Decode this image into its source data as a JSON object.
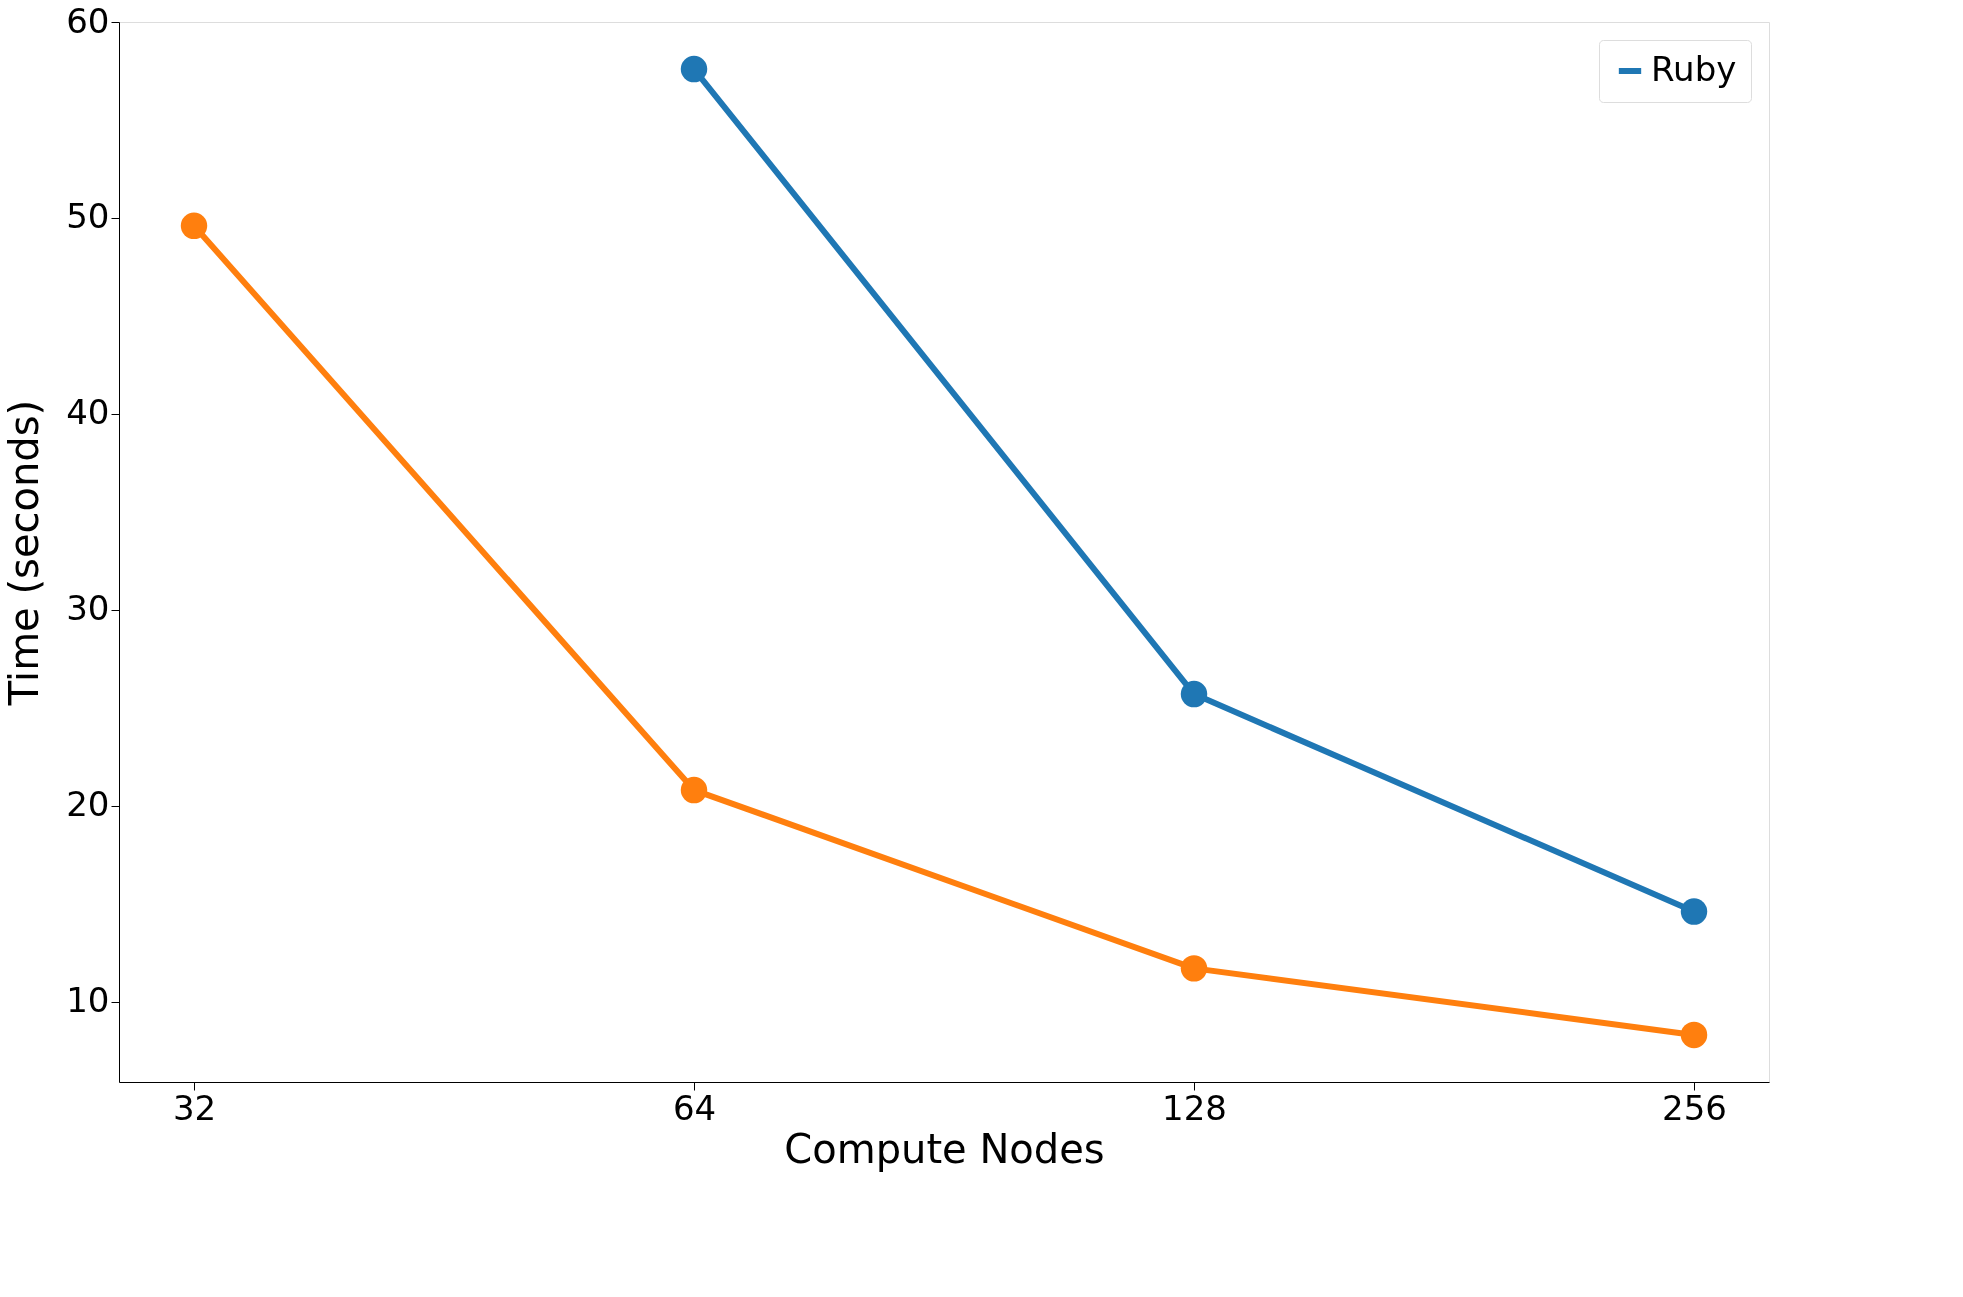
{
  "chart_data": {
    "type": "line",
    "xlabel": "Compute Nodes",
    "ylabel": "Time (seconds)",
    "categories": [
      "32",
      "64",
      "128",
      "256"
    ],
    "series": [
      {
        "name": "Ruby",
        "color": "#1f77b4",
        "values": [
          null,
          57.6,
          25.7,
          14.6
        ]
      },
      {
        "color": "#ff7f0e",
        "values": [
          49.6,
          20.8,
          11.7,
          8.3
        ]
      }
    ],
    "ylim": [
      5.9,
      60
    ],
    "yticks": [
      10,
      20,
      30,
      40,
      50,
      60
    ],
    "grid": false,
    "legend": "top right",
    "marker": "circle",
    "line_style": "solid"
  }
}
